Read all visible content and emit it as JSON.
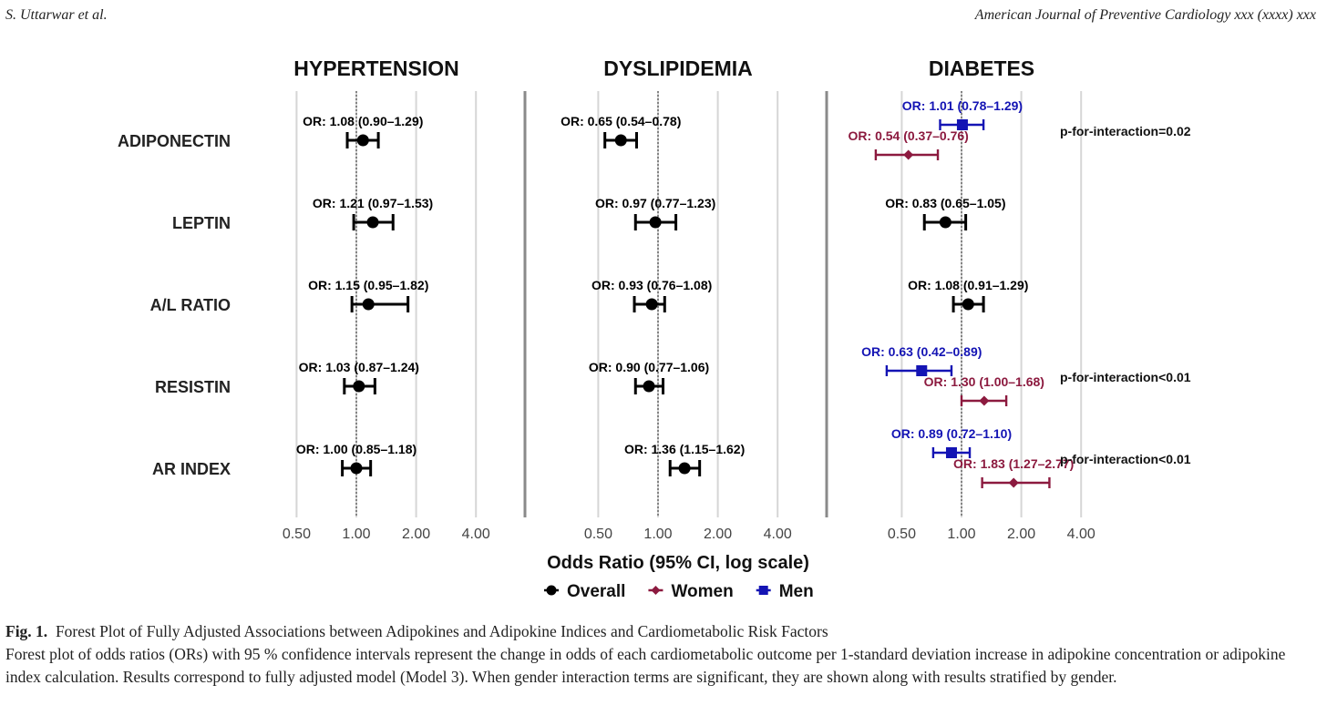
{
  "header": {
    "left": "S. Uttarwar et al.",
    "right": "American Journal of Preventive Cardiology xxx (xxxx) xxx"
  },
  "caption": {
    "label": "Fig. 1.",
    "title": "Forest Plot of Fully Adjusted Associations between Adipokines and Adipokine Indices and Cardiometabolic Risk Factors",
    "body": "Forest plot of odds ratios (ORs) with 95 % confidence intervals represent the change in odds of each cardiometabolic outcome per 1-standard deviation increase in adipokine concentration or adipokine index calculation. Results correspond to fully adjusted model (Model 3). When gender interaction terms are significant, they are shown along with results stratified by gender."
  },
  "chart_data": {
    "type": "forest",
    "xlabel": "Odds Ratio (95% CI, log scale)",
    "xscale": "log2",
    "xlim": [
      0.35,
      5.2
    ],
    "xticks": [
      0.5,
      1,
      2,
      4
    ],
    "xtick_labels": [
      "0.50",
      "1.00",
      "2.00",
      "4.00"
    ],
    "reference_line": 1,
    "rows": [
      "ADIPONECTIN",
      "LEPTIN",
      "A/L RATIO",
      "RESISTIN",
      "AR INDEX"
    ],
    "legend": [
      {
        "name": "Overall",
        "color": "#000000",
        "marker": "circle"
      },
      {
        "name": "Women",
        "color": "#8c1a3f",
        "marker": "diamond"
      },
      {
        "name": "Men",
        "color": "#1414b4",
        "marker": "square"
      }
    ],
    "legend_position": "bottom",
    "panels": [
      {
        "title": "HYPERTENSION",
        "points": [
          {
            "row": 0,
            "group": "Overall",
            "or": 1.08,
            "lo": 0.9,
            "hi": 1.29,
            "label": "OR: 1.08 (0.90–1.29)"
          },
          {
            "row": 1,
            "group": "Overall",
            "or": 1.21,
            "lo": 0.97,
            "hi": 1.53,
            "label": "OR: 1.21 (0.97–1.53)"
          },
          {
            "row": 2,
            "group": "Overall",
            "or": 1.15,
            "lo": 0.95,
            "hi": 1.82,
            "label": "OR: 1.15 (0.95–1.82)"
          },
          {
            "row": 3,
            "group": "Overall",
            "or": 1.03,
            "lo": 0.87,
            "hi": 1.24,
            "label": "OR: 1.03 (0.87–1.24)"
          },
          {
            "row": 4,
            "group": "Overall",
            "or": 1.0,
            "lo": 0.85,
            "hi": 1.18,
            "label": "OR: 1.00 (0.85–1.18)"
          }
        ],
        "annotations": []
      },
      {
        "title": "DYSLIPIDEMIA",
        "points": [
          {
            "row": 0,
            "group": "Overall",
            "or": 0.65,
            "lo": 0.54,
            "hi": 0.78,
            "label": "OR: 0.65 (0.54–0.78)"
          },
          {
            "row": 1,
            "group": "Overall",
            "or": 0.97,
            "lo": 0.77,
            "hi": 1.23,
            "label": "OR: 0.97 (0.77–1.23)"
          },
          {
            "row": 2,
            "group": "Overall",
            "or": 0.93,
            "lo": 0.76,
            "hi": 1.08,
            "label": "OR: 0.93 (0.76–1.08)"
          },
          {
            "row": 3,
            "group": "Overall",
            "or": 0.9,
            "lo": 0.77,
            "hi": 1.06,
            "label": "OR: 0.90 (0.77–1.06)"
          },
          {
            "row": 4,
            "group": "Overall",
            "or": 1.36,
            "lo": 1.15,
            "hi": 1.62,
            "label": "OR: 1.36 (1.15–1.62)"
          }
        ],
        "annotations": []
      },
      {
        "title": "DIABETES",
        "points": [
          {
            "row": 0,
            "group": "Men",
            "or": 1.01,
            "lo": 0.78,
            "hi": 1.29,
            "label": "OR: 1.01 (0.78–1.29)"
          },
          {
            "row": 0,
            "group": "Women",
            "or": 0.54,
            "lo": 0.37,
            "hi": 0.76,
            "label": "OR: 0.54 (0.37–0.76)"
          },
          {
            "row": 1,
            "group": "Overall",
            "or": 0.83,
            "lo": 0.65,
            "hi": 1.05,
            "label": "OR: 0.83 (0.65–1.05)"
          },
          {
            "row": 2,
            "group": "Overall",
            "or": 1.08,
            "lo": 0.91,
            "hi": 1.29,
            "label": "OR: 1.08 (0.91–1.29)"
          },
          {
            "row": 3,
            "group": "Men",
            "or": 0.63,
            "lo": 0.42,
            "hi": 0.89,
            "label": "OR: 0.63 (0.42–0.89)"
          },
          {
            "row": 3,
            "group": "Women",
            "or": 1.3,
            "lo": 1.0,
            "hi": 1.68,
            "label": "OR: 1.30 (1.00–1.68)"
          },
          {
            "row": 4,
            "group": "Men",
            "or": 0.89,
            "lo": 0.72,
            "hi": 1.1,
            "label": "OR: 0.89 (0.72–1.10)"
          },
          {
            "row": 4,
            "group": "Women",
            "or": 1.83,
            "lo": 1.27,
            "hi": 2.77,
            "label": "OR: 1.83 (1.27–2.77)"
          }
        ],
        "annotations": [
          {
            "row": 0,
            "text": "p-for-interaction=0.02"
          },
          {
            "row": 3,
            "text": "p-for-interaction<0.01"
          },
          {
            "row": 4,
            "text": "p-for-interaction<0.01"
          }
        ]
      }
    ]
  }
}
